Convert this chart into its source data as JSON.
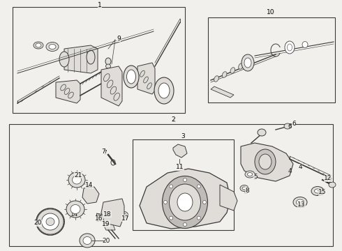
{
  "bg_color": "#f2f0ed",
  "line_color": "#3a3a3a",
  "white": "#ffffff",
  "gray_fill": "#c8c5c0",
  "light_gray": "#e0ddd8",
  "figsize": [
    4.9,
    3.6
  ],
  "dpi": 100
}
